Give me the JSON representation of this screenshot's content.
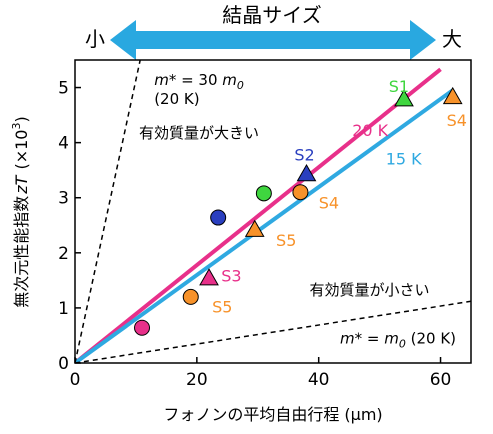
{
  "size_banner": {
    "title": "結晶サイズ",
    "small_label": "小",
    "large_label": "大",
    "arrow_color": "#29a8e0"
  },
  "chart_data": {
    "type": "scatter",
    "xlabel": "フォノンの平均自由行程 (μm)",
    "ylabel_main": "無次元性能指数",
    "ylabel_symbol": "zT",
    "ylabel_unit_prefix": "(×10",
    "ylabel_unit_exp": "3",
    "ylabel_unit_suffix": ")",
    "xlim": [
      0,
      65
    ],
    "ylim": [
      0,
      5.5
    ],
    "xticks": [
      0,
      20,
      40,
      60
    ],
    "yticks": [
      0,
      1,
      2,
      3,
      4,
      5
    ],
    "grid": false,
    "lines": [
      {
        "id": "pink",
        "name": "20 K",
        "color": "#e8308a",
        "style": "solid",
        "x": [
          0,
          60
        ],
        "y": [
          0,
          5.33
        ]
      },
      {
        "id": "blue",
        "name": "15 K",
        "color": "#2fa9e1",
        "style": "solid",
        "x": [
          0,
          62
        ],
        "y": [
          0,
          4.95
        ]
      },
      {
        "id": "heavy",
        "color": "#000000",
        "style": "dashed",
        "x": [
          0,
          10.7
        ],
        "y": [
          0,
          5.5
        ]
      },
      {
        "id": "light",
        "color": "#000000",
        "style": "dashed",
        "x": [
          0,
          65
        ],
        "y": [
          0,
          1.12
        ]
      }
    ],
    "line_labels": [
      {
        "text": "20 K",
        "color": "#e8308a",
        "x": 45.5,
        "y": 4.12
      },
      {
        "text": "15 K",
        "color": "#2fa9e1",
        "x": 51.0,
        "y": 3.6
      }
    ],
    "points": [
      {
        "shape": "circle",
        "color": "#e8308a",
        "x": 11,
        "y": 0.64
      },
      {
        "shape": "circle",
        "color": "#f7922a",
        "x": 19,
        "y": 1.2
      },
      {
        "shape": "circle",
        "color": "#2a3fbf",
        "x": 23.5,
        "y": 2.64
      },
      {
        "shape": "circle",
        "color": "#3fd63f",
        "x": 31,
        "y": 3.08
      },
      {
        "shape": "circle",
        "color": "#f7922a",
        "x": 37,
        "y": 3.1
      },
      {
        "shape": "triangle",
        "color": "#e8308a",
        "x": 22,
        "y": 1.54
      },
      {
        "shape": "triangle",
        "color": "#f7922a",
        "x": 29.5,
        "y": 2.42
      },
      {
        "shape": "triangle",
        "color": "#2a3fbf",
        "x": 38,
        "y": 3.43
      },
      {
        "shape": "triangle",
        "color": "#3fd63f",
        "x": 54,
        "y": 4.79
      },
      {
        "shape": "triangle",
        "color": "#f7922a",
        "x": 62,
        "y": 4.83
      }
    ],
    "point_labels": [
      {
        "text": "S5",
        "color": "#f7922a",
        "x": 22.5,
        "y": 0.92
      },
      {
        "text": "S3",
        "color": "#e8308a",
        "x": 24,
        "y": 1.48
      },
      {
        "text": "S5",
        "color": "#f7922a",
        "x": 33,
        "y": 2.12
      },
      {
        "text": "S4",
        "color": "#f7922a",
        "x": 40,
        "y": 2.8
      },
      {
        "text": "S2",
        "color": "#2a3fbf",
        "x": 36,
        "y": 3.68
      },
      {
        "text": "S1",
        "color": "#3fd63f",
        "x": 51.5,
        "y": 4.92
      },
      {
        "text": "S4",
        "color": "#f7922a",
        "x": 61,
        "y": 4.3
      }
    ],
    "annotations": {
      "heavy_mass_formula": {
        "m": "m",
        "star_eq": "* = 30 ",
        "m0": "m",
        "sub": "0",
        "x": 13,
        "y": 5.05
      },
      "heavy_mass_condition": {
        "text": "(20 K)",
        "x": 13,
        "y": 4.7
      },
      "heavy_mass_label": {
        "text": "有効質量が大きい",
        "x": 10.5,
        "y": 4.08
      },
      "light_mass_label": {
        "text": "有効質量が小さい",
        "x": 38.5,
        "y": 1.23
      },
      "light_mass_formula": {
        "m": "m",
        "star_eq": "* = ",
        "m0": "m",
        "sub": "0",
        "cond": " (20 K)",
        "x": 43.5,
        "y": 0.35
      }
    }
  }
}
